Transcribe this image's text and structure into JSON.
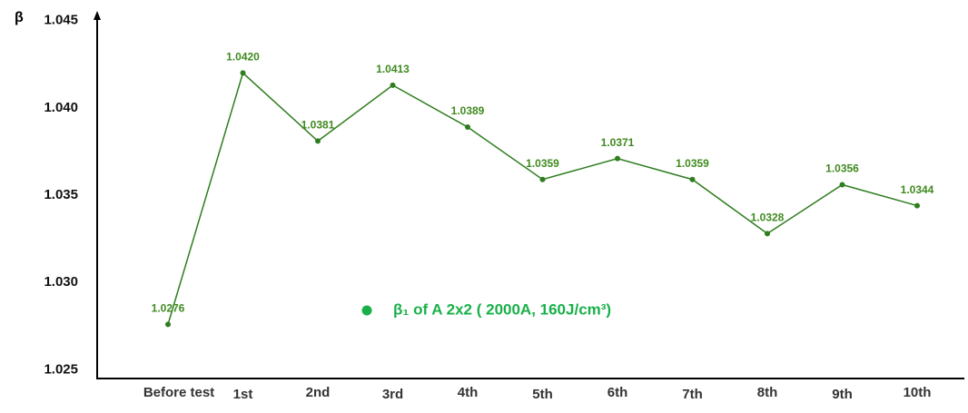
{
  "chart_data": {
    "type": "line",
    "y_label": "β",
    "categories": [
      "Before test",
      "1st",
      "2nd",
      "3rd",
      "4th",
      "5th",
      "6th",
      "7th",
      "8th",
      "9th",
      "10th"
    ],
    "series": [
      {
        "name": "β₁ of A 2x2 ( 2000A, 160J/cm³)",
        "color": "#2e7d1e",
        "legend_color": "#19b04a",
        "values": [
          1.0276,
          1.042,
          1.0381,
          1.0413,
          1.0389,
          1.0359,
          1.0371,
          1.0359,
          1.0328,
          1.0356,
          1.0344
        ],
        "value_labels": [
          "1.0276",
          "1.0420",
          "1.0381",
          "1.0413",
          "1.0389",
          "1.0359",
          "1.0371",
          "1.0359",
          "1.0328",
          "1.0356",
          "1.0344"
        ]
      }
    ],
    "ylim": [
      1.0245,
      1.0454
    ],
    "yticks": [
      1.025,
      {
        "value": 1.03,
        "label": "1.030"
      },
      1.035,
      {
        "value": 1.04,
        "label": "1.040"
      },
      1.045
    ],
    "grid": false
  }
}
